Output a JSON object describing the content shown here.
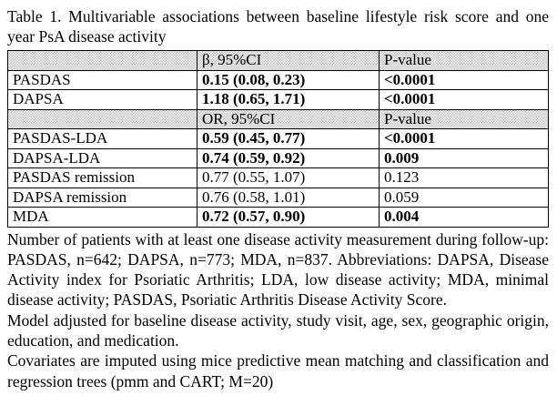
{
  "title": "Table 1. Multivariable associations between baseline lifestyle risk score and one year PsA disease activity",
  "table": {
    "sections": [
      {
        "header": {
          "label": "",
          "estimate_label": "β, 95%CI",
          "p_label": "P-value"
        },
        "rows": [
          {
            "label": "PASDAS",
            "estimate": "0.15 (0.08, 0.23)",
            "p_value": "<0.0001",
            "significant": true
          },
          {
            "label": "DAPSA",
            "estimate": "1.18 (0.65, 1.71)",
            "p_value": "<0.0001",
            "significant": true
          }
        ]
      },
      {
        "header": {
          "label": "",
          "estimate_label": "OR, 95%CI",
          "p_label": "P-value"
        },
        "rows": [
          {
            "label": "PASDAS-LDA",
            "estimate": "0.59 (0.45, 0.77)",
            "p_value": "<0.0001",
            "significant": true
          },
          {
            "label": "DAPSA-LDA",
            "estimate": "0.74 (0.59, 0.92)",
            "p_value": "0.009",
            "significant": true
          },
          {
            "label": "PASDAS remission",
            "estimate": "0.77 (0.55, 1.07)",
            "p_value": "0.123",
            "significant": false
          },
          {
            "label": "DAPSA remission",
            "estimate": "0.76 (0.58, 1.01)",
            "p_value": "0.059",
            "significant": false
          },
          {
            "label": "MDA",
            "estimate": "0.72 (0.57, 0.90)",
            "p_value": "0.004",
            "significant": true
          }
        ]
      }
    ]
  },
  "notes": [
    "Number of patients with at least one disease activity measurement during follow-up: PASDAS, n=642; DAPSA, n=773; MDA, n=837. Abbreviations: DAPSA, Disease Activity index for Psoriatic Arthritis; LDA, low disease activity; MDA, minimal disease activity; PASDAS, Psoriatic Arthritis Disease Activity Score.",
    "Model adjusted for baseline disease activity, study visit, age, sex, geographic origin, education, and medication.",
    "Covariates are imputed using mice predictive mean matching and classification and regression trees (pmm and CART; M=20)"
  ],
  "colors": {
    "page_bg": "#ffffff",
    "text": "#000000",
    "table_border": "#000000",
    "header_row_bg": "#dcdcdc"
  }
}
